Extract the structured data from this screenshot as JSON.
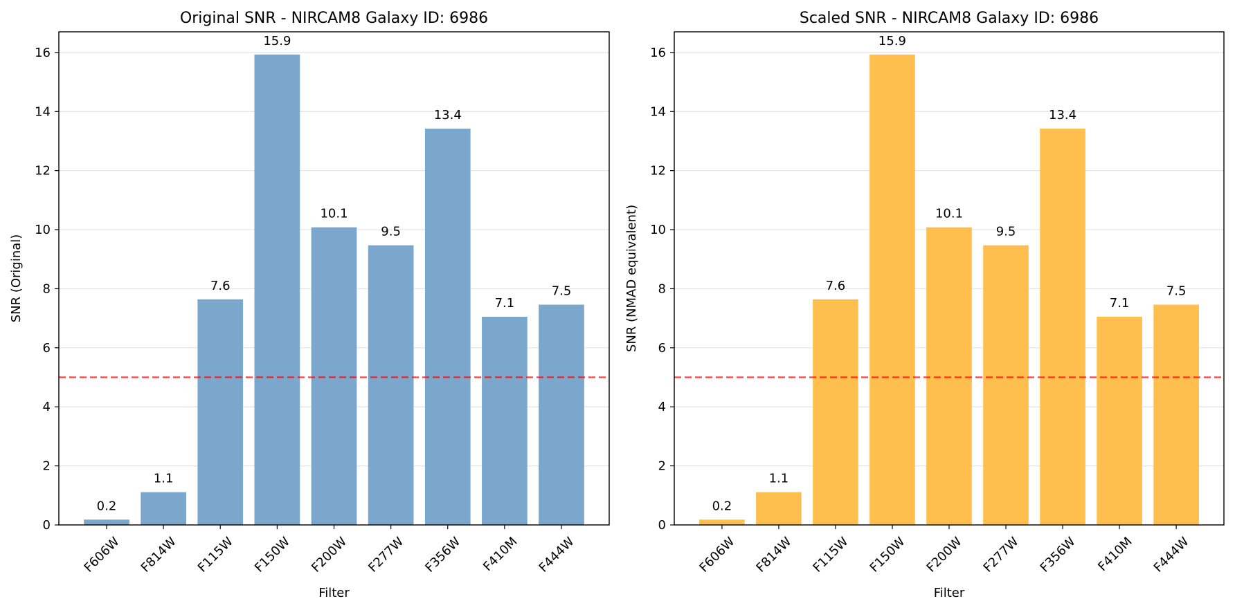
{
  "chart_data": [
    {
      "type": "bar",
      "title": "Original SNR - NIRCAM8 Galaxy ID: 6986",
      "xlabel": "Filter",
      "ylabel": "SNR (Original)",
      "categories": [
        "F606W",
        "F814W",
        "F115W",
        "F150W",
        "F200W",
        "F277W",
        "F356W",
        "F410M",
        "F444W"
      ],
      "values": [
        0.18,
        1.11,
        7.64,
        15.93,
        10.08,
        9.47,
        13.42,
        7.05,
        7.46
      ],
      "data_labels": [
        "0.2",
        "1.1",
        "7.6",
        "15.9",
        "10.1",
        "9.5",
        "13.4",
        "7.1",
        "7.5"
      ],
      "ylim": [
        0,
        16.7
      ],
      "yticks": [
        0,
        2,
        4,
        6,
        8,
        10,
        12,
        14,
        16
      ],
      "threshold": 5,
      "threshold_color": "#ff0000",
      "bar_color": "#7ba7cc",
      "grid": "y"
    },
    {
      "type": "bar",
      "title": "Scaled SNR - NIRCAM8 Galaxy ID: 6986",
      "xlabel": "Filter",
      "ylabel": "SNR (NMAD equivalent)",
      "categories": [
        "F606W",
        "F814W",
        "F115W",
        "F150W",
        "F200W",
        "F277W",
        "F356W",
        "F410M",
        "F444W"
      ],
      "values": [
        0.18,
        1.11,
        7.64,
        15.93,
        10.08,
        9.47,
        13.42,
        7.05,
        7.46
      ],
      "data_labels": [
        "0.2",
        "1.1",
        "7.6",
        "15.9",
        "10.1",
        "9.5",
        "13.4",
        "7.1",
        "7.5"
      ],
      "ylim": [
        0,
        16.7
      ],
      "yticks": [
        0,
        2,
        4,
        6,
        8,
        10,
        12,
        14,
        16
      ],
      "threshold": 5,
      "threshold_color": "#ff0000",
      "bar_color": "#ffbf4f",
      "grid": "y"
    }
  ]
}
